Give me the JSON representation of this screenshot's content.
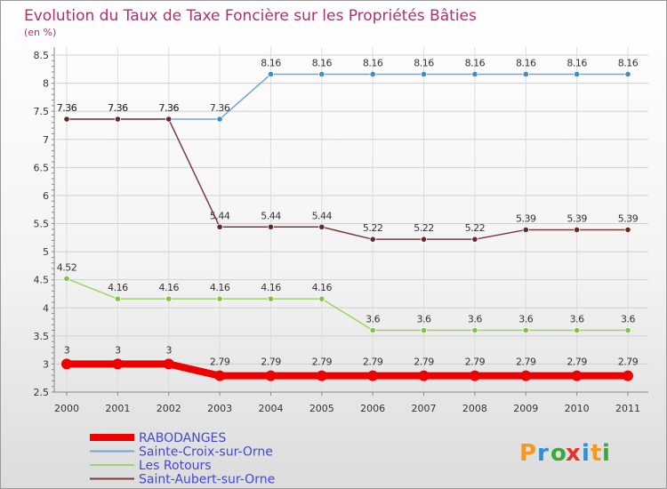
{
  "chart_data": {
    "type": "line",
    "title": "Evolution du Taux de Taxe Foncière sur les Propriétés Bâties",
    "subtitle": "(en %)",
    "x": [
      "2000",
      "2001",
      "2002",
      "2003",
      "2004",
      "2005",
      "2006",
      "2007",
      "2008",
      "2009",
      "2010",
      "2011"
    ],
    "ylim": [
      2.5,
      8.5
    ],
    "yticks": [
      "2.5",
      "3",
      "3.5",
      "4",
      "4.5",
      "5",
      "5.5",
      "6",
      "6.5",
      "7",
      "7.5",
      "8",
      "8.5"
    ],
    "grid": true,
    "legend_position": "bottom-left",
    "series": [
      {
        "name": "Sainte-Croix-sur-Orne",
        "color": "#6fa8d8",
        "marker": "#3c8dcc",
        "values": [
          7.36,
          7.36,
          7.36,
          7.36,
          8.16,
          8.16,
          8.16,
          8.16,
          8.16,
          8.16,
          8.16,
          8.16
        ],
        "labels": [
          "7.36",
          "7.36",
          "7.36",
          "7.36",
          "8.16",
          "8.16",
          "8.16",
          "8.16",
          "8.16",
          "8.16",
          "8.16",
          "8.16"
        ]
      },
      {
        "name": "Saint-Aubert-sur-Orne",
        "color": "#7a3b3b",
        "marker": "#6b2626",
        "values": [
          7.36,
          7.36,
          7.36,
          5.44,
          5.44,
          5.44,
          5.22,
          5.22,
          5.22,
          5.39,
          5.39,
          5.39
        ],
        "labels": [
          "7.36",
          "7.36",
          "7.36",
          "5.44",
          "5.44",
          "5.44",
          "5.22",
          "5.22",
          "5.22",
          "5.39",
          "5.39",
          "5.39"
        ]
      },
      {
        "name": "Les Rotours",
        "color": "#9ed36a",
        "marker": "#7cc442",
        "values": [
          4.52,
          4.16,
          4.16,
          4.16,
          4.16,
          4.16,
          3.6,
          3.6,
          3.6,
          3.6,
          3.6,
          3.6
        ],
        "labels": [
          "4.52",
          "4.16",
          "4.16",
          "4.16",
          "4.16",
          "4.16",
          "3.6",
          "3.6",
          "3.6",
          "3.6",
          "3.6",
          "3.6"
        ]
      },
      {
        "name": "RABODANGES",
        "color": "#ee0000",
        "marker": "#ee0000",
        "values": [
          3,
          3,
          3,
          2.79,
          2.79,
          2.79,
          2.79,
          2.79,
          2.79,
          2.79,
          2.79,
          2.79
        ],
        "labels": [
          "3",
          "3",
          "3",
          "2.79",
          "2.79",
          "2.79",
          "2.79",
          "2.79",
          "2.79",
          "2.79",
          "2.79",
          "2.79"
        ]
      }
    ],
    "legend": [
      "RABODANGES",
      "Sainte-Croix-sur-Orne",
      "Les Rotours",
      "Saint-Aubert-sur-Orne"
    ]
  },
  "logo": {
    "text": "Proxiti",
    "letters": [
      "P",
      "r",
      "o",
      "x",
      "i",
      "t",
      "i"
    ],
    "colors": [
      "#f29a1f",
      "#2e8fd1",
      "#3aa83a",
      "#e8322b",
      "#2e8fd1",
      "#f29a1f",
      "#3aa83a"
    ]
  },
  "colors": {
    "title": "#b0306e",
    "axis": "#888888",
    "tick_text": "#333333",
    "legend_text": "#4646d8"
  }
}
